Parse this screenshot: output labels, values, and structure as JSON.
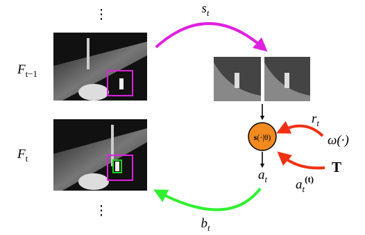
{
  "ellipsis": [
    "⋮",
    "⋮"
  ],
  "frames": [
    {
      "label": {
        "base": "F",
        "sub": "t−1"
      }
    },
    {
      "label": {
        "base": "F",
        "sub": "t"
      }
    }
  ],
  "arrows": {
    "top": {
      "base": "s",
      "sub": "t"
    },
    "bottom": {
      "base": "b",
      "sub": "t"
    }
  },
  "policy": {
    "bold": "s",
    "rest": "(·|θ)"
  },
  "action": {
    "base": "a",
    "sub": "t"
  },
  "reward": {
    "base": "r",
    "sub": "t"
  },
  "reward_fn": "ω(·)",
  "teacher": "T",
  "teacher_action": {
    "base": "a",
    "sub": "t",
    "sup": "(t)"
  }
}
